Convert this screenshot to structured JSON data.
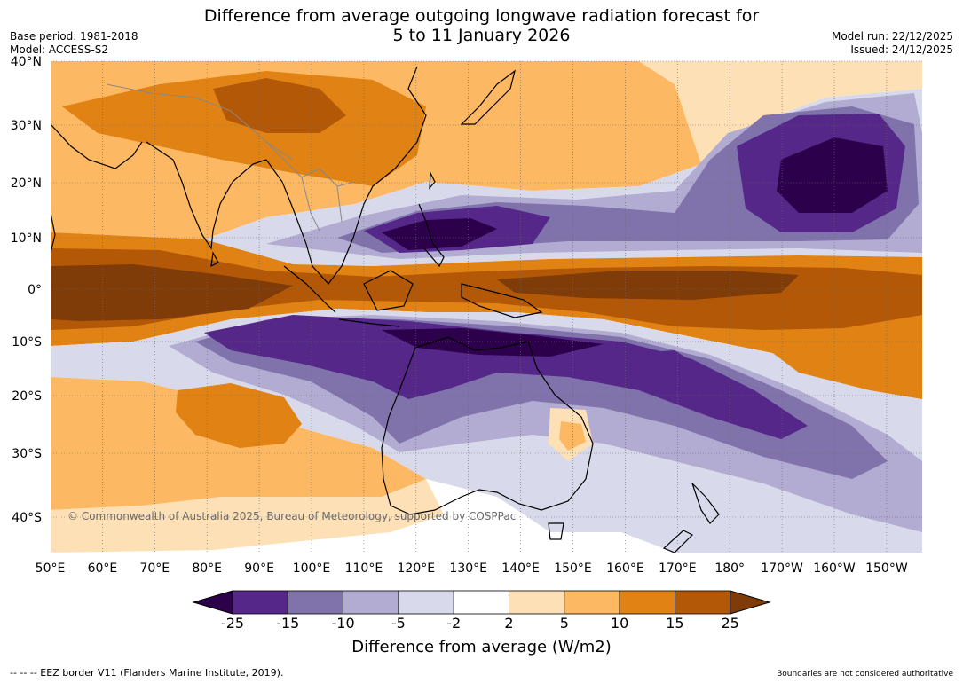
{
  "header": {
    "title_line1": "Difference from average outgoing longwave radiation forecast for",
    "title_line2": "5 to 11 January 2026",
    "base_period": "Base period: 1981-2018",
    "model": "Model: ACCESS-S2",
    "model_run": "Model run: 22/12/2025",
    "issued": "Issued: 24/12/2025"
  },
  "map": {
    "lat_labels": [
      "40°N",
      "30°N",
      "20°N",
      "10°N",
      "0°",
      "10°S",
      "20°S",
      "30°S",
      "40°S"
    ],
    "lon_labels": [
      "50°E",
      "60°E",
      "70°E",
      "80°E",
      "90°E",
      "100°E",
      "110°E",
      "120°E",
      "130°E",
      "140°E",
      "150°E",
      "160°E",
      "170°E",
      "180°",
      "170°W",
      "160°W",
      "150°W"
    ],
    "copyright": "© Commonwealth of Australia 2025, Bureau of Meteorology, supported by COSPPac"
  },
  "colorbar": {
    "ticks": [
      "-25",
      "-15",
      "-10",
      "-5",
      "-2",
      "2",
      "5",
      "10",
      "15",
      "25"
    ],
    "colors": [
      "#2d004b",
      "#542788",
      "#8073ac",
      "#b2abd2",
      "#d8daeb",
      "#ffffff",
      "#fee0b6",
      "#fdb863",
      "#e08214",
      "#b35806",
      "#7f3b08"
    ],
    "label": "Difference from average (W/m2)"
  },
  "footer": {
    "eez_note": "--  --  -- EEZ border V11 (Flanders Marine Institute, 2019).",
    "boundaries_note": "Boundaries are not considered authoritative"
  }
}
